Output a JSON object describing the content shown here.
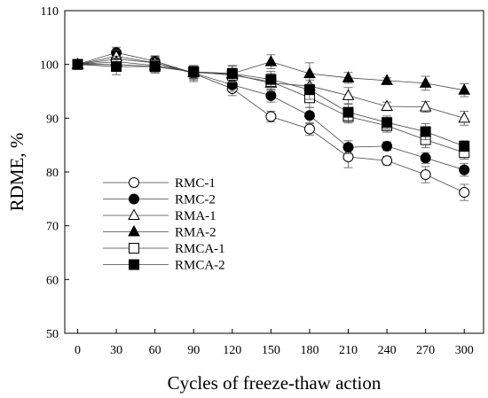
{
  "chart_data": {
    "type": "line",
    "title": "",
    "xlabel": "Cycles of freeze-thaw action",
    "ylabel": "RDME, %",
    "x": [
      0,
      30,
      60,
      90,
      120,
      150,
      180,
      210,
      240,
      270,
      300
    ],
    "xticks": [
      "0",
      "30",
      "60",
      "90",
      "120",
      "150",
      "180",
      "210",
      "240",
      "270",
      "300"
    ],
    "yticks": [
      "50",
      "60",
      "70",
      "80",
      "90",
      "100",
      "110"
    ],
    "xlim": [
      -10,
      315
    ],
    "ylim": [
      50,
      110
    ],
    "grid": false,
    "legend_position": "lower-left",
    "error_bars": true,
    "series": [
      {
        "name": "RMC-1",
        "marker": "circle-open",
        "values": [
          100,
          101.0,
          100.3,
          98.3,
          95.5,
          90.3,
          88.0,
          82.8,
          82.1,
          79.5,
          76.2
        ],
        "errors": [
          0.5,
          1.5,
          1.2,
          1.5,
          1.3,
          1.0,
          1.2,
          2.0,
          0.8,
          1.5,
          1.5
        ]
      },
      {
        "name": "RMC-2",
        "marker": "circle-filled",
        "values": [
          100,
          102.2,
          100.6,
          98.4,
          96.2,
          94.2,
          90.5,
          84.6,
          84.8,
          82.6,
          80.4
        ],
        "errors": [
          0.5,
          1.0,
          1.0,
          1.3,
          1.2,
          1.2,
          1.5,
          1.2,
          0.8,
          1.0,
          1.2
        ]
      },
      {
        "name": "RMA-1",
        "marker": "triangle-open",
        "values": [
          100,
          101.5,
          100.3,
          98.5,
          98.2,
          96.5,
          96.0,
          94.2,
          92.2,
          92.1,
          90.0
        ],
        "errors": [
          0.5,
          1.2,
          1.0,
          1.2,
          1.5,
          1.5,
          1.5,
          1.5,
          0.8,
          1.0,
          1.3
        ]
      },
      {
        "name": "RMA-2",
        "marker": "triangle-filled",
        "values": [
          100,
          100.5,
          99.8,
          98.6,
          98.3,
          100.5,
          98.3,
          97.5,
          97.0,
          96.5,
          95.2
        ],
        "errors": [
          0.5,
          1.0,
          1.0,
          1.0,
          1.5,
          1.3,
          2.0,
          1.0,
          0.5,
          1.3,
          1.2
        ]
      },
      {
        "name": "RMCA-1",
        "marker": "square-open",
        "values": [
          100,
          100.0,
          99.6,
          98.6,
          98.0,
          96.8,
          93.8,
          90.3,
          88.6,
          86.0,
          83.6
        ],
        "errors": [
          0.5,
          1.2,
          1.0,
          1.2,
          1.3,
          1.5,
          1.8,
          1.2,
          1.2,
          1.5,
          1.2
        ]
      },
      {
        "name": "RMCA-2",
        "marker": "square-filled",
        "values": [
          100,
          99.6,
          99.6,
          98.6,
          98.3,
          97.2,
          95.3,
          91.1,
          89.2,
          87.5,
          84.8
        ],
        "errors": [
          0.5,
          1.5,
          1.2,
          1.2,
          1.5,
          1.5,
          1.8,
          1.5,
          1.2,
          1.5,
          1.0
        ]
      }
    ]
  }
}
